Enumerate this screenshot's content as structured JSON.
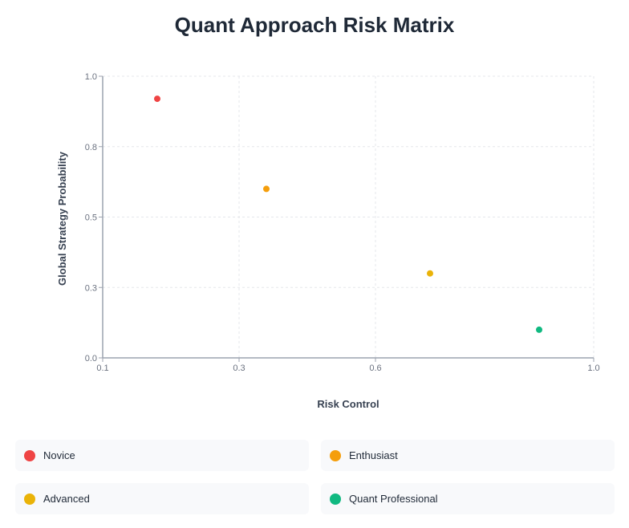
{
  "chart_data": {
    "type": "scatter",
    "title": "Quant Approach Risk Matrix",
    "xlabel": "Risk Control",
    "ylabel": "Global Strategy Probability",
    "xlim": [
      0.1,
      1.0
    ],
    "ylim": [
      0.0,
      1.0
    ],
    "x_ticks": [
      {
        "value": 0.1,
        "label": "0.1"
      },
      {
        "value": 0.35,
        "label": "0.3"
      },
      {
        "value": 0.6,
        "label": "0.6"
      },
      {
        "value": 1.0,
        "label": "1.0"
      }
    ],
    "y_ticks": [
      {
        "value": 0.0,
        "label": "0.0"
      },
      {
        "value": 0.25,
        "label": "0.3"
      },
      {
        "value": 0.5,
        "label": "0.5"
      },
      {
        "value": 0.75,
        "label": "0.8"
      },
      {
        "value": 1.0,
        "label": "1.0"
      }
    ],
    "grid": true,
    "legend_placement": "bottom",
    "series": [
      {
        "name": "Novice",
        "color": "#ef4444",
        "x": 0.2,
        "y": 0.92
      },
      {
        "name": "Enthusiast",
        "color": "#f59e0b",
        "x": 0.4,
        "y": 0.6
      },
      {
        "name": "Advanced",
        "color": "#eab308",
        "x": 0.7,
        "y": 0.3
      },
      {
        "name": "Quant Professional",
        "color": "#10b981",
        "x": 0.9,
        "y": 0.1
      }
    ]
  }
}
